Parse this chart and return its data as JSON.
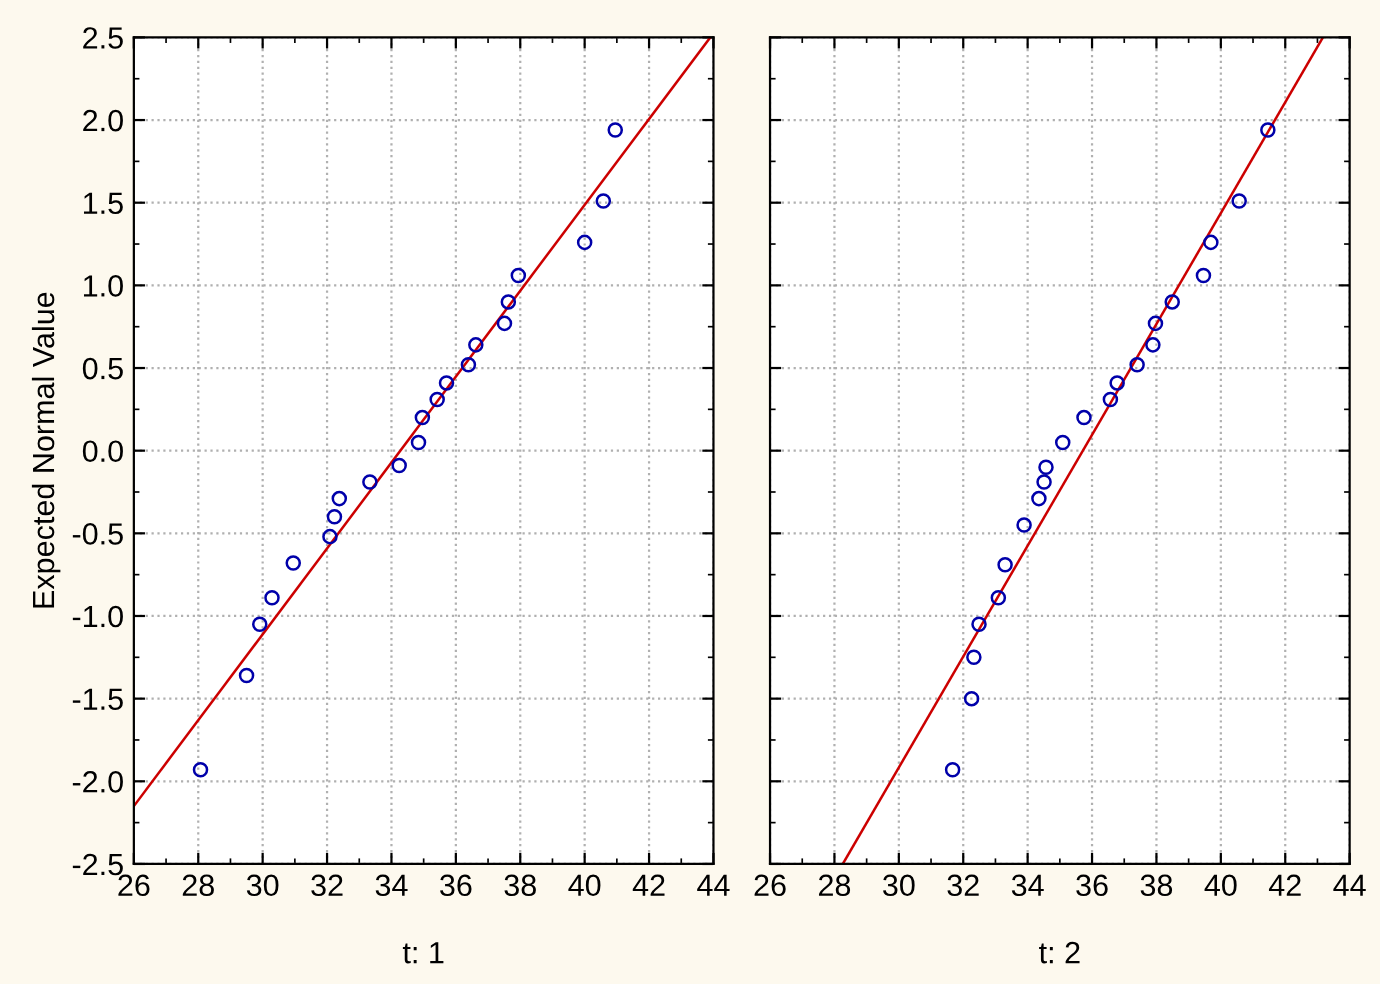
{
  "chart_data": [
    {
      "type": "scatter",
      "xlabel": "t: 1",
      "ylabel": "Expected Normal Value",
      "xlim": [
        26,
        44
      ],
      "ylim": [
        -2.5,
        2.5
      ],
      "xticks": [
        26,
        28,
        30,
        32,
        34,
        36,
        38,
        40,
        42,
        44
      ],
      "yticks": [
        {
          "value": -2.5,
          "label": "-2.5"
        },
        {
          "value": -2.0,
          "label": "-2.0"
        },
        {
          "value": -1.5,
          "label": "-1.5"
        },
        {
          "value": -1.0,
          "label": "-1.0"
        },
        {
          "value": -0.5,
          "label": "-0.5"
        },
        {
          "value": 0,
          "label": "0.0"
        },
        {
          "value": 0.5,
          "label": "0.5"
        },
        {
          "value": 1.0,
          "label": "1.0"
        },
        {
          "value": 1.5,
          "label": "1.5"
        },
        {
          "value": 2.0,
          "label": "2.0"
        },
        {
          "value": 2.5,
          "label": "2.5"
        }
      ],
      "grid": true,
      "series": [
        {
          "marker": "circle",
          "color": "#0000aa",
          "x": [
            28.07,
            29.5,
            29.91,
            30.29,
            30.95,
            32.09,
            32.23,
            32.38,
            33.33,
            34.24,
            34.84,
            34.96,
            35.42,
            35.71,
            36.39,
            36.62,
            37.51,
            37.63,
            37.94,
            40.0,
            40.58,
            40.95
          ],
          "values": [
            -1.93,
            -1.36,
            -1.05,
            -0.89,
            -0.68,
            -0.52,
            -0.4,
            -0.29,
            -0.19,
            -0.09,
            0.05,
            0.2,
            0.31,
            0.41,
            0.52,
            0.64,
            0.77,
            0.9,
            1.06,
            1.26,
            1.51,
            1.94
          ]
        },
        {
          "type": "line",
          "color": "#cc0000",
          "x": [
            26,
            43.9
          ],
          "values": [
            -2.15,
            2.5
          ]
        }
      ]
    },
    {
      "type": "scatter",
      "xlabel": "t: 2",
      "xlim": [
        26,
        44
      ],
      "ylim": [
        -2.5,
        2.5
      ],
      "xticks": [
        26,
        28,
        30,
        32,
        34,
        36,
        38,
        40,
        42,
        44
      ],
      "yticks": [
        {
          "value": -2.5,
          "label": null
        },
        {
          "value": -2.0,
          "label": null
        },
        {
          "value": -1.5,
          "label": null
        },
        {
          "value": -1.0,
          "label": null
        },
        {
          "value": -0.5,
          "label": null
        },
        {
          "value": 0,
          "label": null
        },
        {
          "value": 0.5,
          "label": null
        },
        {
          "value": 1.0,
          "label": null
        },
        {
          "value": 1.5,
          "label": null
        },
        {
          "value": 2.0,
          "label": null
        },
        {
          "value": 2.5,
          "label": null
        }
      ],
      "tick_labels": "x",
      "grid": true,
      "series": [
        {
          "marker": "circle",
          "color": "#0000aa",
          "x": [
            31.67,
            32.26,
            32.33,
            32.49,
            33.09,
            33.3,
            33.89,
            34.35,
            34.51,
            34.57,
            35.09,
            35.75,
            36.57,
            36.78,
            37.4,
            37.89,
            37.97,
            38.49,
            39.46,
            39.69,
            40.57,
            41.46
          ],
          "values": [
            -1.93,
            -1.5,
            -1.25,
            -1.05,
            -0.89,
            -0.69,
            -0.45,
            -0.29,
            -0.19,
            -0.1,
            0.05,
            0.2,
            0.31,
            0.41,
            0.52,
            0.64,
            0.77,
            0.9,
            1.06,
            1.26,
            1.51,
            1.94
          ]
        },
        {
          "type": "line",
          "color": "#cc0000",
          "x": [
            28.26,
            43.17
          ],
          "values": [
            -2.5,
            2.5
          ]
        }
      ]
    }
  ]
}
